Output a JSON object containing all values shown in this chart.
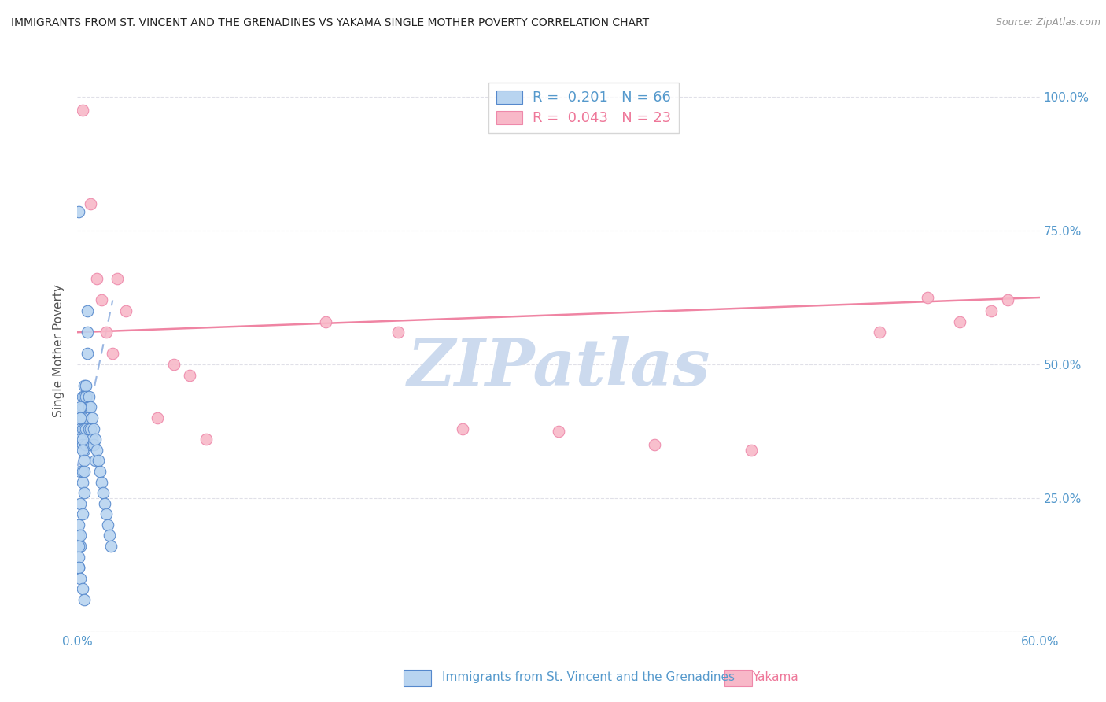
{
  "title": "IMMIGRANTS FROM ST. VINCENT AND THE GRENADINES VS YAKAMA SINGLE MOTHER POVERTY CORRELATION CHART",
  "source": "Source: ZipAtlas.com",
  "ylabel": "Single Mother Poverty",
  "x_label_blue": "Immigrants from St. Vincent and the Grenadines",
  "x_label_pink": "Yakama",
  "xlim": [
    0.0,
    0.6
  ],
  "ylim": [
    0.0,
    1.05
  ],
  "xticks": [
    0.0,
    0.1,
    0.2,
    0.3,
    0.4,
    0.5,
    0.6
  ],
  "xticklabels": [
    "0.0%",
    "",
    "",
    "",
    "",
    "",
    "60.0%"
  ],
  "yticks": [
    0.0,
    0.25,
    0.5,
    0.75,
    1.0
  ],
  "ytick_labels_right": [
    "",
    "25.0%",
    "50.0%",
    "75.0%",
    "100.0%"
  ],
  "watermark": "ZIPatlas",
  "legend_r_blue": "R =  0.201",
  "legend_n_blue": "N = 66",
  "legend_r_pink": "R =  0.043",
  "legend_n_pink": "N = 23",
  "blue_scatter_x": [
    0.001,
    0.001,
    0.001,
    0.002,
    0.002,
    0.002,
    0.002,
    0.002,
    0.003,
    0.003,
    0.003,
    0.003,
    0.003,
    0.003,
    0.004,
    0.004,
    0.004,
    0.004,
    0.004,
    0.005,
    0.005,
    0.005,
    0.005,
    0.006,
    0.006,
    0.006,
    0.007,
    0.007,
    0.007,
    0.008,
    0.008,
    0.008,
    0.009,
    0.009,
    0.01,
    0.01,
    0.011,
    0.011,
    0.012,
    0.013,
    0.014,
    0.015,
    0.016,
    0.017,
    0.018,
    0.019,
    0.02,
    0.021,
    0.003,
    0.004,
    0.002,
    0.003,
    0.001,
    0.002,
    0.001,
    0.001,
    0.002,
    0.002,
    0.003,
    0.003,
    0.004,
    0.004,
    0.001,
    0.002,
    0.003,
    0.004
  ],
  "blue_scatter_y": [
    0.785,
    0.18,
    0.12,
    0.4,
    0.38,
    0.36,
    0.3,
    0.16,
    0.44,
    0.42,
    0.4,
    0.38,
    0.35,
    0.28,
    0.46,
    0.44,
    0.42,
    0.38,
    0.34,
    0.46,
    0.44,
    0.38,
    0.35,
    0.6,
    0.56,
    0.52,
    0.44,
    0.42,
    0.38,
    0.42,
    0.38,
    0.35,
    0.4,
    0.36,
    0.38,
    0.35,
    0.36,
    0.32,
    0.34,
    0.32,
    0.3,
    0.28,
    0.26,
    0.24,
    0.22,
    0.2,
    0.18,
    0.16,
    0.3,
    0.26,
    0.24,
    0.22,
    0.2,
    0.18,
    0.16,
    0.14,
    0.42,
    0.4,
    0.36,
    0.34,
    0.32,
    0.3,
    0.12,
    0.1,
    0.08,
    0.06
  ],
  "pink_scatter_x": [
    0.003,
    0.008,
    0.012,
    0.015,
    0.018,
    0.022,
    0.025,
    0.03,
    0.05,
    0.06,
    0.07,
    0.08,
    0.155,
    0.2,
    0.24,
    0.3,
    0.36,
    0.42,
    0.5,
    0.53,
    0.55,
    0.57,
    0.58
  ],
  "pink_scatter_y": [
    0.975,
    0.8,
    0.66,
    0.62,
    0.56,
    0.52,
    0.66,
    0.6,
    0.4,
    0.5,
    0.48,
    0.36,
    0.58,
    0.56,
    0.38,
    0.375,
    0.35,
    0.34,
    0.56,
    0.625,
    0.58,
    0.6,
    0.62
  ],
  "blue_line_x": [
    -0.002,
    0.022
  ],
  "blue_line_y": [
    0.28,
    0.62
  ],
  "pink_line_x": [
    0.0,
    0.6
  ],
  "pink_line_y": [
    0.56,
    0.625
  ],
  "blue_color": "#b8d4f0",
  "pink_color": "#f8b8c8",
  "blue_edge": "#5588cc",
  "pink_edge": "#ee88aa",
  "trend_blue_color": "#88aadd",
  "trend_pink_color": "#ee7799",
  "background_color": "#ffffff",
  "grid_color": "#e0e0e8",
  "title_color": "#222222",
  "axis_color": "#5599cc",
  "watermark_color": "#ccdaee"
}
